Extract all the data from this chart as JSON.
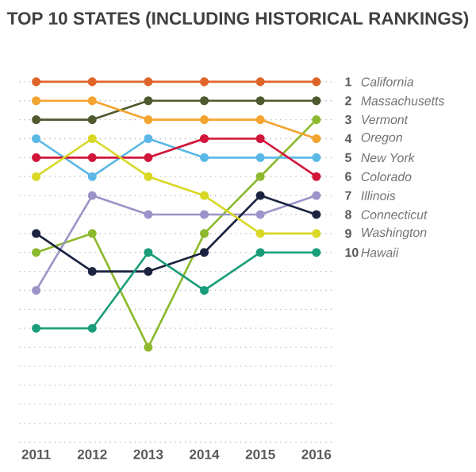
{
  "chart_data": {
    "type": "line",
    "title": "TOP 10 STATES (INCLUDING HISTORICAL RANKINGS)",
    "x": [
      2011,
      2012,
      2013,
      2014,
      2015,
      2016
    ],
    "xlim": [
      2010.7,
      2016.3
    ],
    "xticks": [
      2011,
      2012,
      2013,
      2014,
      2015,
      2016
    ],
    "ylim": [
      20,
      1
    ],
    "yticks": [
      1,
      2,
      3,
      4,
      5,
      6,
      7,
      8,
      9,
      10,
      {
        "value": 11,
        "label": null
      },
      {
        "value": 12,
        "label": null
      },
      {
        "value": 13,
        "label": null
      },
      {
        "value": 14,
        "label": null
      },
      {
        "value": 15,
        "label": null
      },
      {
        "value": 16,
        "label": null
      },
      {
        "value": 17,
        "label": null
      },
      {
        "value": 18,
        "label": null
      },
      {
        "value": 19,
        "label": null
      },
      {
        "value": 20,
        "label": null
      }
    ],
    "grid": "y",
    "legend": false,
    "marker": "circle",
    "line_style": "solid",
    "series": [
      {
        "name": "California",
        "color": "#e0642a",
        "values": [
          1,
          1,
          1,
          1,
          1,
          1
        ]
      },
      {
        "name": "Massachusetts",
        "color": "#4f5a2e",
        "values": [
          3,
          3,
          2,
          2,
          2,
          2
        ]
      },
      {
        "name": "Vermont",
        "color": "#8db92e",
        "values": [
          10,
          9,
          15,
          9,
          6,
          3
        ]
      },
      {
        "name": "Oregon",
        "color": "#f3a530",
        "values": [
          2,
          2,
          3,
          3,
          3,
          4
        ]
      },
      {
        "name": "New York",
        "color": "#5bb8e6",
        "values": [
          4,
          6,
          4,
          5,
          5,
          5
        ]
      },
      {
        "name": "Colorado",
        "color": "#d1163a",
        "values": [
          5,
          5,
          5,
          4,
          4,
          6
        ]
      },
      {
        "name": "Illinois",
        "color": "#9c94c8",
        "values": [
          12,
          7,
          8,
          8,
          8,
          7
        ]
      },
      {
        "name": "Connecticut",
        "color": "#1b2340",
        "values": [
          9,
          11,
          11,
          10,
          7,
          8
        ]
      },
      {
        "name": "Washington",
        "color": "#d9d826",
        "values": [
          6,
          4,
          6,
          7,
          9,
          9
        ]
      },
      {
        "name": "Hawaii",
        "color": "#1a9e7a",
        "values": [
          14,
          14,
          10,
          12,
          10,
          10
        ]
      }
    ]
  }
}
